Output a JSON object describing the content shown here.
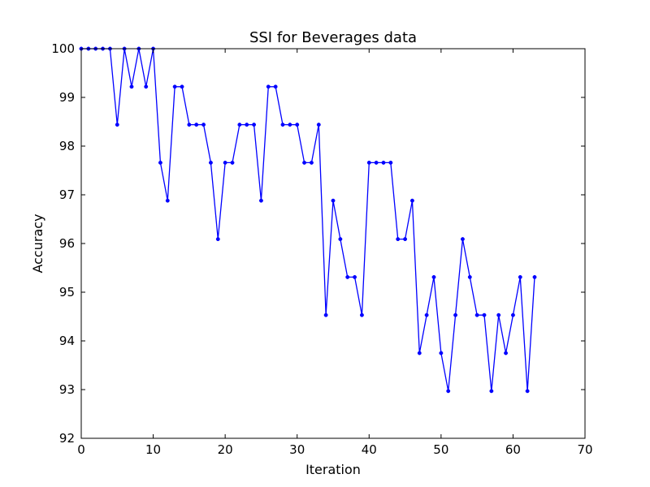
{
  "chart_data": {
    "type": "line",
    "title": "SSI for Beverages data",
    "xlabel": "Iteration",
    "ylabel": "Accuracy",
    "xlim": [
      0,
      70
    ],
    "ylim": [
      92,
      100
    ],
    "xticks": [
      0,
      10,
      20,
      30,
      40,
      50,
      60,
      70
    ],
    "yticks": [
      92,
      93,
      94,
      95,
      96,
      97,
      98,
      99,
      100
    ],
    "grid": false,
    "legend": "none",
    "series": [
      {
        "color": "#0000ff",
        "marker": "dot",
        "x": [
          0,
          1,
          2,
          3,
          4,
          5,
          6,
          7,
          8,
          9,
          10,
          11,
          12,
          13,
          14,
          15,
          16,
          17,
          18,
          19,
          20,
          21,
          22,
          23,
          24,
          25,
          26,
          27,
          28,
          29,
          30,
          31,
          32,
          33,
          34,
          35,
          36,
          37,
          38,
          39,
          40,
          41,
          42,
          43,
          44,
          45,
          46,
          47,
          48,
          49,
          50,
          51,
          52,
          53,
          54,
          55,
          56,
          57,
          58,
          59,
          60,
          61,
          62,
          63
        ],
        "y": [
          100,
          100,
          100,
          100,
          100,
          98.44,
          100,
          99.22,
          100,
          99.22,
          100,
          97.66,
          96.88,
          99.22,
          99.22,
          98.44,
          98.44,
          98.44,
          97.66,
          96.09,
          97.66,
          97.66,
          98.44,
          98.44,
          98.44,
          96.88,
          99.22,
          99.22,
          98.44,
          98.44,
          98.44,
          97.66,
          97.66,
          98.44,
          94.53,
          96.88,
          96.09,
          95.31,
          95.31,
          94.53,
          97.66,
          97.66,
          97.66,
          97.66,
          96.09,
          96.09,
          96.88,
          93.75,
          94.53,
          95.31,
          93.75,
          92.97,
          94.53,
          96.09,
          95.31,
          94.53,
          94.53,
          92.97,
          94.53,
          93.75,
          94.53,
          95.31,
          92.97,
          95.31
        ]
      }
    ]
  }
}
